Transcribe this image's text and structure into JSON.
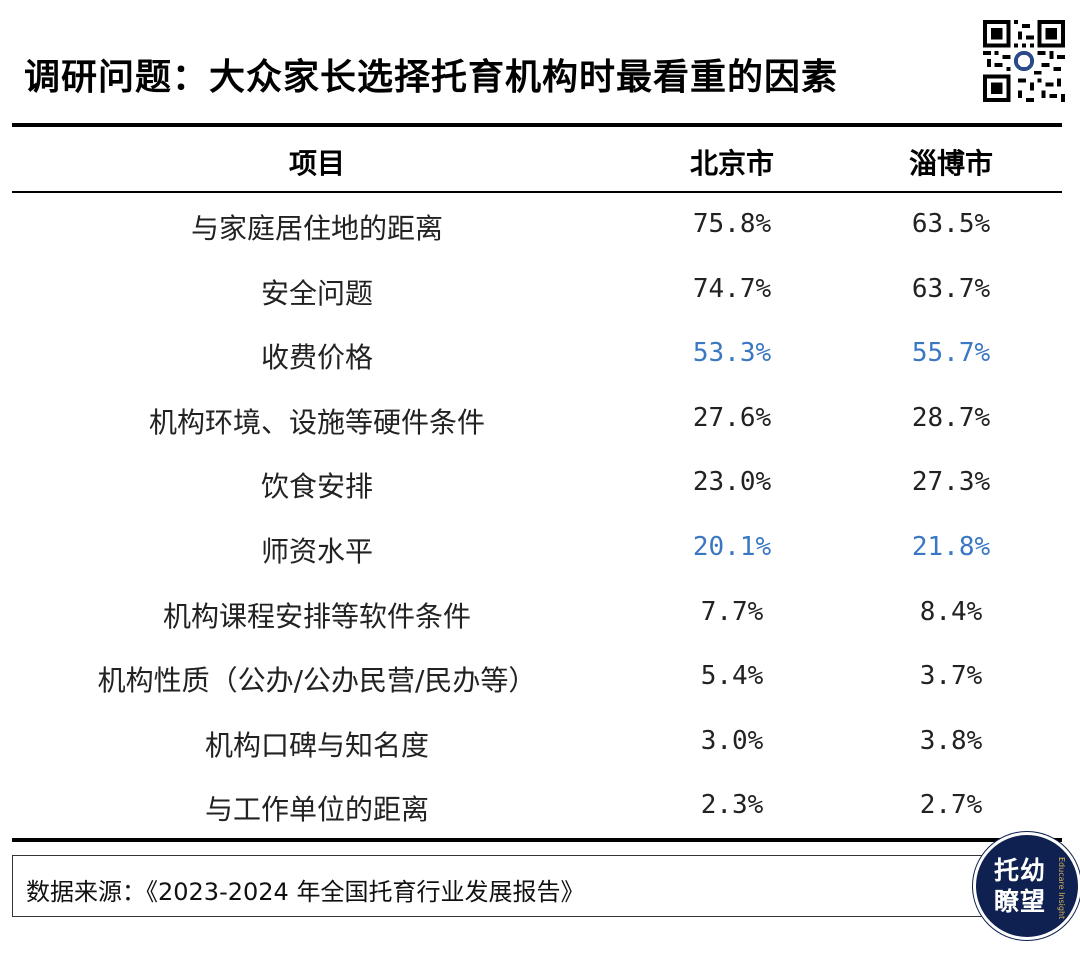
{
  "title": "调研问题：大众家长选择托育机构时最看重的因素",
  "header": {
    "col_item": "项目",
    "col_beijing": "北京市",
    "col_zibo": "淄博市"
  },
  "rows": [
    {
      "item": "与家庭居住地的距离",
      "beijing": "75.8%",
      "zibo": "63.5%",
      "highlight": false
    },
    {
      "item": "安全问题",
      "beijing": "74.7%",
      "zibo": "63.7%",
      "highlight": false
    },
    {
      "item": "收费价格",
      "beijing": "53.3%",
      "zibo": "55.7%",
      "highlight": true
    },
    {
      "item": "机构环境、设施等硬件条件",
      "beijing": "27.6%",
      "zibo": "28.7%",
      "highlight": false
    },
    {
      "item": "饮食安排",
      "beijing": "23.0%",
      "zibo": "27.3%",
      "highlight": false
    },
    {
      "item": "师资水平",
      "beijing": "20.1%",
      "zibo": "21.8%",
      "highlight": true
    },
    {
      "item": "机构课程安排等软件条件",
      "beijing": "7.7%",
      "zibo": "8.4%",
      "highlight": false
    },
    {
      "item": "机构性质（公办/公办民营/民办等）",
      "beijing": "5.4%",
      "zibo": "3.7%",
      "highlight": false
    },
    {
      "item": "机构口碑与知名度",
      "beijing": "3.0%",
      "zibo": "3.8%",
      "highlight": false
    },
    {
      "item": "与工作单位的距离",
      "beijing": "2.3%",
      "zibo": "2.7%",
      "highlight": false
    }
  ],
  "footer": {
    "source": "数据来源：《2023-2024 年全国托育行业发展报告》"
  },
  "logo": {
    "name": "托幼瞭望",
    "subtitle": "Educare Insight"
  },
  "colors": {
    "highlight": "#3a78c3",
    "logo_bg": "#0e2150",
    "logo_sub": "#d7b35a"
  },
  "icons": {
    "qr": "qr-code-icon",
    "logo": "brand-logo-badge"
  }
}
